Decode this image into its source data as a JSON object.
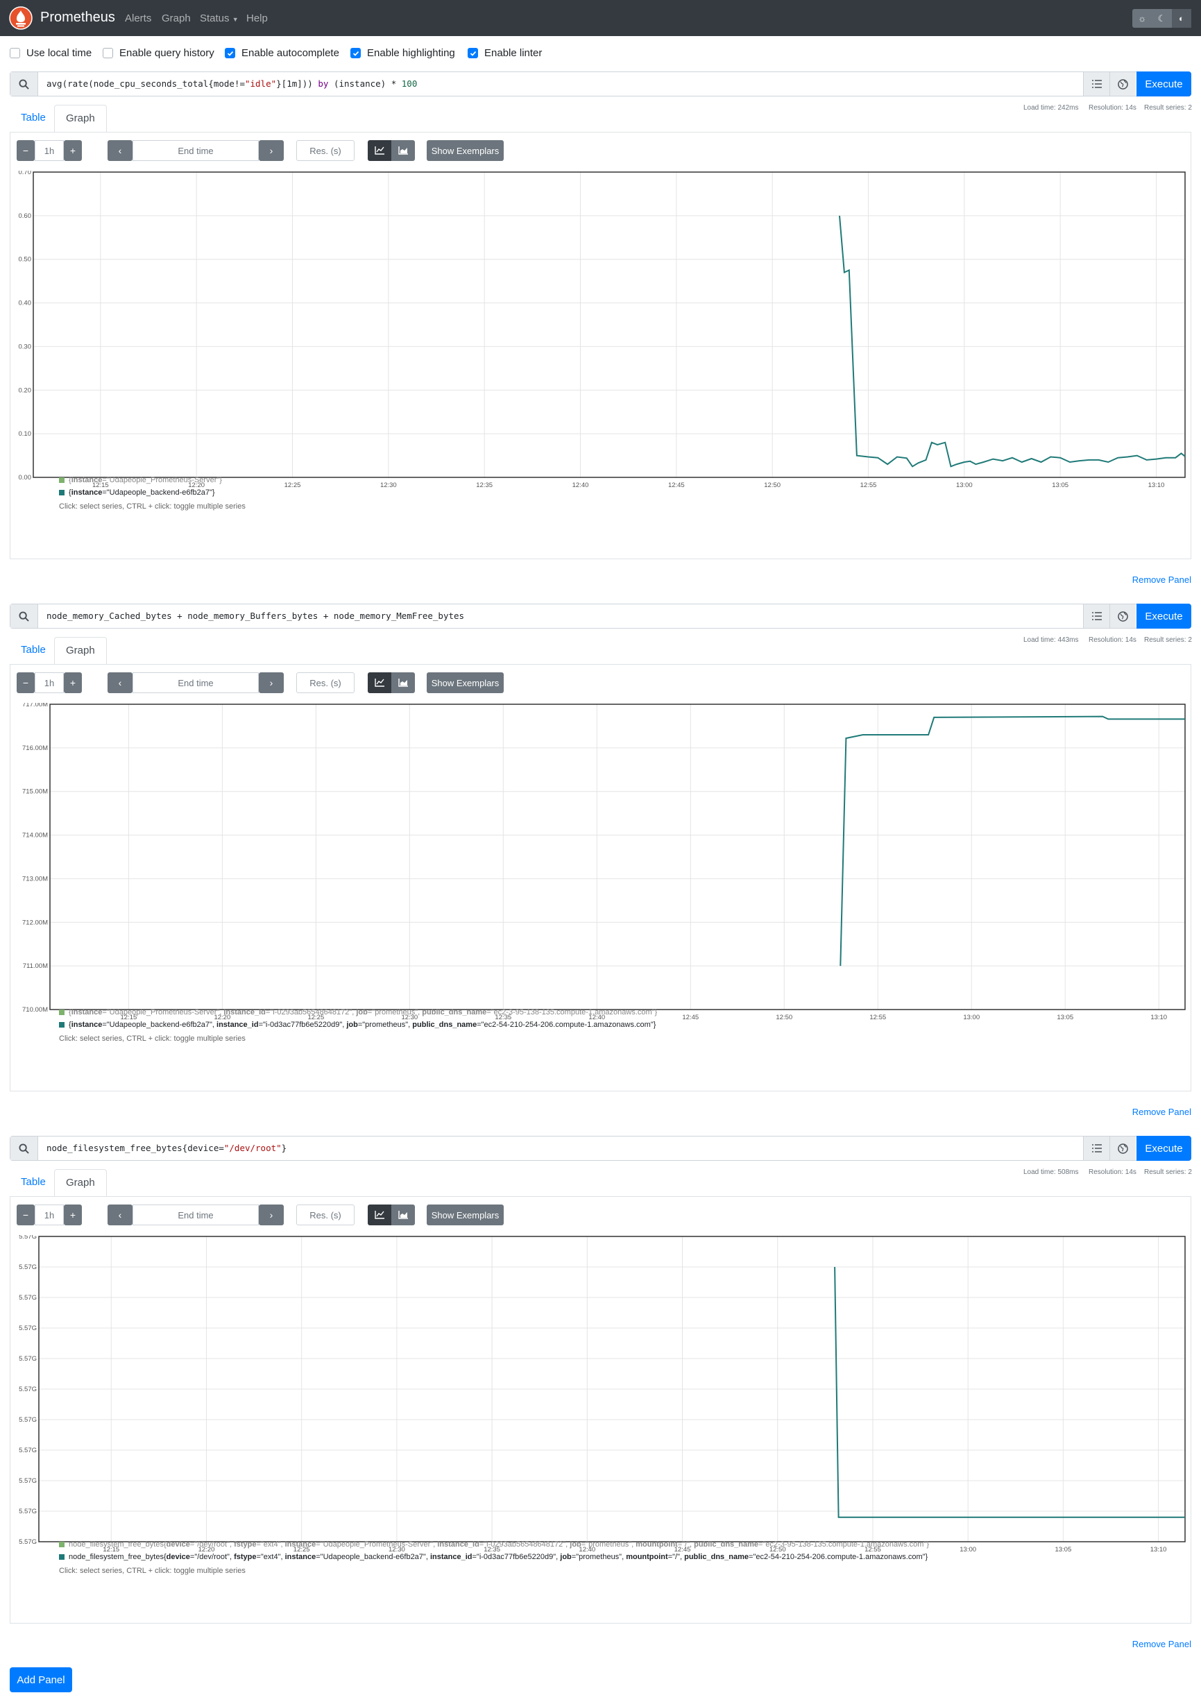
{
  "navbar": {
    "brand": "Prometheus",
    "items": [
      "Alerts",
      "Graph",
      "Status",
      "Help"
    ]
  },
  "options": [
    {
      "label": "Use local time",
      "checked": false
    },
    {
      "label": "Enable query history",
      "checked": false
    },
    {
      "label": "Enable autocomplete",
      "checked": true
    },
    {
      "label": "Enable highlighting",
      "checked": true
    },
    {
      "label": "Enable linter",
      "checked": true
    }
  ],
  "common": {
    "execute_label": "Execute",
    "tab_table": "Table",
    "tab_graph": "Graph",
    "range_value": "1h",
    "end_time_placeholder": "End time",
    "res_placeholder": "Res. (s)",
    "show_exemplars": "Show Exemplars",
    "remove_panel": "Remove Panel",
    "legend_hint": "Click: select series, CTRL + click: toggle multiple series",
    "minus": "−",
    "plus": "+"
  },
  "colors": {
    "series_1": "#7eb26d",
    "series_2": "#1f7a78",
    "accent": "#007bff"
  },
  "panels": [
    {
      "expression": "avg(rate(node_cpu_seconds_total{mode!=\"idle\"}[1m])) by (instance) * 100",
      "load_time": "Load time: 242ms",
      "resolution": "Resolution: 14s",
      "result_series": "Result series: 2",
      "legend": [
        {
          "metric": "",
          "labels": [
            {
              "k": "instance",
              "v": "Udapeople_Prometheus-Server"
            }
          ],
          "dim": true
        },
        {
          "metric": "",
          "labels": [
            {
              "k": "instance",
              "v": "Udapeople_backend-e6fb2a7"
            }
          ],
          "dim": false
        }
      ]
    },
    {
      "expression": "node_memory_Cached_bytes + node_memory_Buffers_bytes + node_memory_MemFree_bytes",
      "load_time": "Load time: 443ms",
      "resolution": "Resolution: 14s",
      "result_series": "Result series: 2",
      "legend": [
        {
          "metric": "",
          "labels": [
            {
              "k": "instance",
              "v": "Udapeople_Prometheus-Server"
            },
            {
              "k": "instance_id",
              "v": "i-0293ab56548648172"
            },
            {
              "k": "job",
              "v": "prometheus"
            },
            {
              "k": "public_dns_name",
              "v": "ec2-3-95-138-135.compute-1.amazonaws.com"
            }
          ],
          "dim": true
        },
        {
          "metric": "",
          "labels": [
            {
              "k": "instance",
              "v": "Udapeople_backend-e6fb2a7"
            },
            {
              "k": "instance_id",
              "v": "i-0d3ac77fb6e5220d9"
            },
            {
              "k": "job",
              "v": "prometheus"
            },
            {
              "k": "public_dns_name",
              "v": "ec2-54-210-254-206.compute-1.amazonaws.com"
            }
          ],
          "dim": false
        }
      ]
    },
    {
      "expression": "node_filesystem_free_bytes{device=\"/dev/root\"}",
      "load_time": "Load time: 508ms",
      "resolution": "Resolution: 14s",
      "result_series": "Result series: 2",
      "legend": [
        {
          "metric": "node_filesystem_free_bytes",
          "labels": [
            {
              "k": "device",
              "v": "/dev/root"
            },
            {
              "k": "fstype",
              "v": "ext4"
            },
            {
              "k": "instance",
              "v": "Udapeople_Prometheus-Server"
            },
            {
              "k": "instance_id",
              "v": "i-0293ab56548648172"
            },
            {
              "k": "job",
              "v": "prometheus"
            },
            {
              "k": "mountpoint",
              "v": "/"
            },
            {
              "k": "public_dns_name",
              "v": "ec2-3-95-138-135.compute-1.amazonaws.com"
            }
          ],
          "dim": true
        },
        {
          "metric": "node_filesystem_free_bytes",
          "labels": [
            {
              "k": "device",
              "v": "/dev/root"
            },
            {
              "k": "fstype",
              "v": "ext4"
            },
            {
              "k": "instance",
              "v": "Udapeople_backend-e6fb2a7"
            },
            {
              "k": "instance_id",
              "v": "i-0d3ac77fb6e5220d9"
            },
            {
              "k": "job",
              "v": "prometheus"
            },
            {
              "k": "mountpoint",
              "v": "/"
            },
            {
              "k": "public_dns_name",
              "v": "ec2-54-210-254-206.compute-1.amazonaws.com"
            }
          ],
          "dim": false
        }
      ]
    }
  ],
  "add_panel": "Add Panel",
  "chart_data": [
    {
      "type": "line",
      "title": "",
      "x_ticks": [
        "12:15",
        "12:20",
        "12:25",
        "12:30",
        "12:35",
        "12:40",
        "12:45",
        "12:50",
        "12:55",
        "13:00",
        "13:05",
        "13:10"
      ],
      "y_ticks": [
        "0.00",
        "0.10",
        "0.20",
        "0.30",
        "0.40",
        "0.50",
        "0.60",
        "0.70"
      ],
      "ylim": [
        0,
        0.7
      ],
      "xlim_minutes": [
        -3.5,
        56.5
      ],
      "series": [
        {
          "name": "{instance=\"Udapeople_backend-e6fb2a7\"}",
          "x": [
            38.5,
            38.75,
            39.0,
            39.4,
            40.0,
            40.5,
            41.0,
            41.5,
            42.0,
            42.3,
            42.6,
            43.0,
            43.3,
            43.6,
            44.0,
            44.3,
            44.6,
            45.0,
            45.3,
            45.6,
            46.0,
            46.5,
            47.0,
            47.5,
            48.0,
            48.5,
            49.0,
            49.5,
            50.0,
            50.5,
            51.0,
            51.5,
            52.0,
            52.5,
            53.0,
            53.5,
            54.0,
            54.5,
            55.0,
            55.5,
            56.0,
            56.3,
            56.5
          ],
          "y": [
            0.6,
            0.47,
            0.475,
            0.05,
            0.047,
            0.045,
            0.03,
            0.047,
            0.044,
            0.025,
            0.033,
            0.04,
            0.08,
            0.075,
            0.08,
            0.025,
            0.03,
            0.035,
            0.037,
            0.03,
            0.035,
            0.042,
            0.038,
            0.045,
            0.035,
            0.043,
            0.035,
            0.047,
            0.045,
            0.035,
            0.038,
            0.04,
            0.04,
            0.035,
            0.045,
            0.047,
            0.05,
            0.04,
            0.042,
            0.045,
            0.045,
            0.055,
            0.048
          ]
        }
      ]
    },
    {
      "type": "line",
      "title": "",
      "x_ticks": [
        "12:15",
        "12:20",
        "12:25",
        "12:30",
        "12:35",
        "12:40",
        "12:45",
        "12:50",
        "12:55",
        "13:00",
        "13:05",
        "13:10"
      ],
      "y_ticks": [
        "710.00M",
        "711.00M",
        "712.00M",
        "713.00M",
        "714.00M",
        "715.00M",
        "716.00M",
        "717.00M"
      ],
      "ylim": [
        710,
        717
      ],
      "xlim_minutes": [
        -4.2,
        56.4
      ],
      "series": [
        {
          "name": "{instance=\"Udapeople_backend-e6fb2a7\"}",
          "x": [
            38.0,
            38.3,
            39.2,
            42.7,
            43.0,
            52.0,
            52.3,
            56.4
          ],
          "y": [
            711.0,
            716.22,
            716.3,
            716.3,
            716.7,
            716.72,
            716.66,
            716.66
          ]
        }
      ]
    },
    {
      "type": "line",
      "title": "",
      "x_ticks": [
        "12:15",
        "12:20",
        "12:25",
        "12:30",
        "12:35",
        "12:40",
        "12:45",
        "12:50",
        "12:55",
        "13:00",
        "13:05",
        "13:10"
      ],
      "y_ticks": [
        "5.57G",
        "5.57G",
        "5.57G",
        "5.57G",
        "5.57G",
        "5.57G",
        "5.57G",
        "5.57G",
        "5.57G",
        "5.57G",
        "5.57G"
      ],
      "ylim": [
        0,
        10
      ],
      "xlim_minutes": [
        -3.8,
        56.4
      ],
      "series": [
        {
          "name": "node_filesystem_free_bytes{instance=\"Udapeople_backend-e6fb2a7\"}",
          "x": [
            38.0,
            38.2,
            56.4
          ],
          "y": [
            9.0,
            0.8,
            0.8
          ]
        }
      ]
    }
  ]
}
